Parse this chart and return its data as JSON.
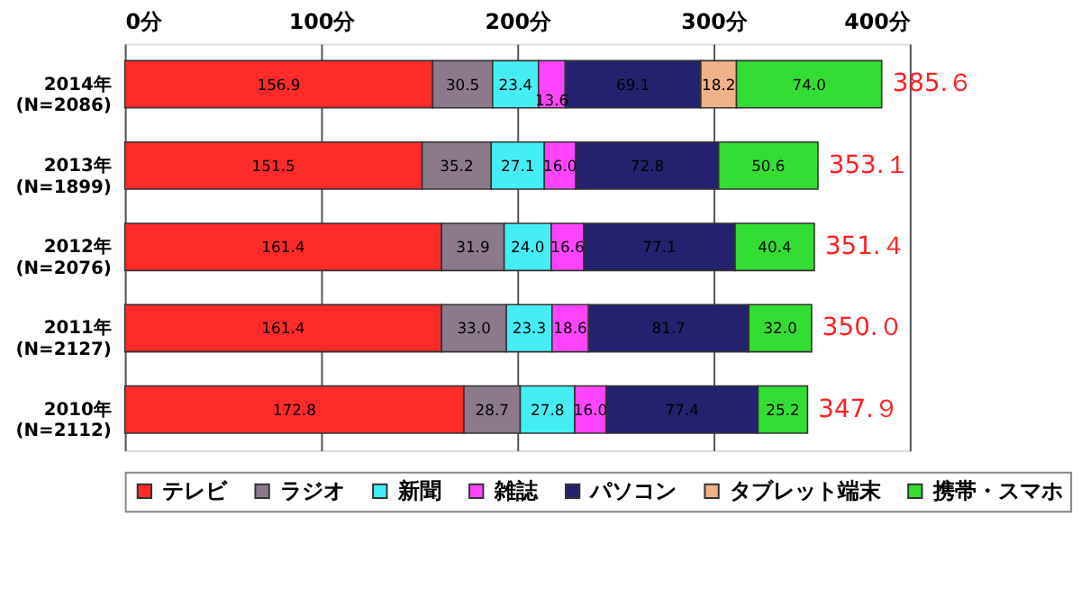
{
  "chart_data": {
    "type": "bar",
    "orientation": "horizontal",
    "stacked": true,
    "categories": [
      "2014年\n(N=2086)",
      "2013年\n(N=1899)",
      "2012年\n(N=2076)",
      "2011年\n(N=2127)",
      "2010年\n(N=2112)"
    ],
    "series": [
      {
        "name": "テレビ",
        "color": "#ff2a2a",
        "values": [
          156.9,
          151.5,
          161.4,
          161.4,
          172.8
        ],
        "value_labels": [
          "156.9",
          "151.5",
          "161.4",
          "161.4",
          "172.8"
        ]
      },
      {
        "name": "ラジオ",
        "color": "#8c7a8c",
        "values": [
          30.5,
          35.2,
          31.9,
          33.0,
          28.7
        ],
        "value_labels": [
          "30.5",
          "35.2",
          "31.9",
          "33.0",
          "28.7"
        ]
      },
      {
        "name": "新聞",
        "color": "#44eef4",
        "values": [
          23.4,
          27.1,
          24.0,
          23.3,
          27.8
        ],
        "value_labels": [
          "23.4",
          "27.1",
          "24.0",
          "23.3",
          "27.8"
        ]
      },
      {
        "name": "雑誌",
        "color": "#ff44ff",
        "values": [
          13.6,
          16.0,
          16.6,
          18.6,
          16.0
        ],
        "value_labels": [
          "13.6",
          "16.0",
          "16.6",
          "18.6",
          "16.0"
        ]
      },
      {
        "name": "パソコン",
        "color": "#22226e",
        "values": [
          69.1,
          72.8,
          77.1,
          81.7,
          77.4
        ],
        "value_labels": [
          "69.1",
          "72.8",
          "77.1",
          "81.7",
          "77.4"
        ]
      },
      {
        "name": "タブレット端末",
        "color": "#f0b088",
        "values": [
          18.2,
          null,
          null,
          null,
          null
        ],
        "value_labels": [
          "18.2",
          null,
          null,
          null,
          null
        ]
      },
      {
        "name": "携帯・スマホ",
        "color": "#33dd33",
        "values": [
          74.0,
          50.6,
          40.4,
          32.0,
          25.2
        ],
        "value_labels": [
          "74.0",
          "50.6",
          "40.4",
          "32.0",
          "25.2"
        ]
      }
    ],
    "xlim": [
      0,
      400
    ],
    "xticks": [
      {
        "value": 0,
        "label": "0分"
      },
      {
        "value": 100,
        "label": "100分"
      },
      {
        "value": 200,
        "label": "200分"
      },
      {
        "value": 300,
        "label": "300分"
      },
      {
        "value": 400,
        "label": "400分"
      }
    ],
    "totals": [
      "385.６",
      "353.１",
      "351.４",
      "350.０",
      "347.９"
    ],
    "grid": "x",
    "legend": "bottom"
  }
}
